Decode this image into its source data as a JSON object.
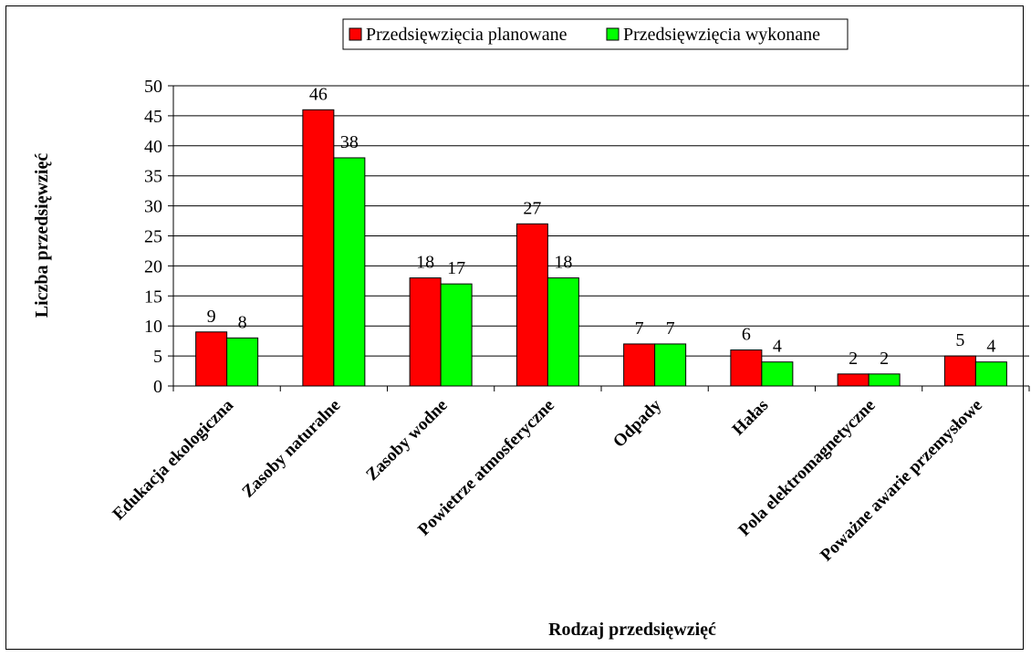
{
  "chart_data": {
    "type": "bar",
    "title": "",
    "xlabel": "Rodzaj przedsięwzięć",
    "ylabel": "Liczba przedsięwzięć",
    "ylim": [
      0,
      50
    ],
    "y_ticks": [
      0,
      5,
      10,
      15,
      20,
      25,
      30,
      35,
      40,
      45,
      50
    ],
    "grid": true,
    "legend": "top-center",
    "categories": [
      "Edukacja ekologiczna",
      "Zasoby naturalne",
      "Zasoby wodne",
      "Powietrze atmosferyczne",
      "Odpady",
      "Hałas",
      "Pola elektromagnetyczne",
      "Poważne awarie przemysłowe"
    ],
    "series": [
      {
        "name": "Przedsięwzięcia planowane",
        "color": "#ff0000",
        "values": [
          9,
          46,
          18,
          27,
          7,
          6,
          2,
          5
        ]
      },
      {
        "name": "Przedsięwzięcia wykonane",
        "color": "#00ff00",
        "values": [
          8,
          38,
          17,
          18,
          7,
          4,
          2,
          4
        ]
      }
    ]
  }
}
